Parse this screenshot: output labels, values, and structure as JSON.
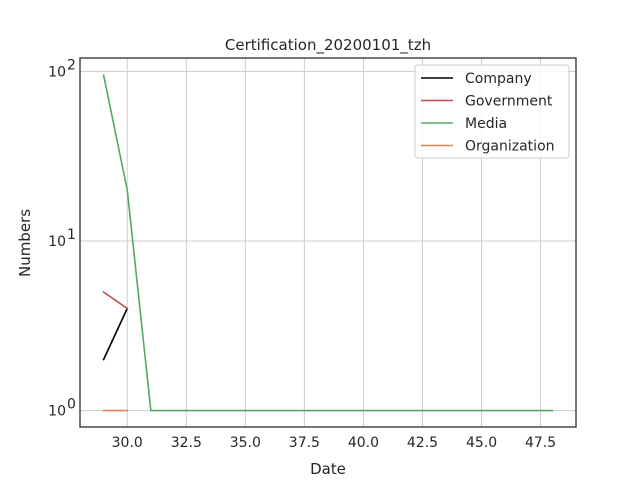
{
  "chart_data": {
    "type": "line",
    "title": "Certification_20200101_tzh",
    "xlabel": "Date",
    "ylabel": "Numbers",
    "yscale": "log",
    "xlim": [
      28,
      49
    ],
    "ylim": [
      0.8,
      120
    ],
    "x_ticks": [
      30.0,
      32.5,
      35.0,
      37.5,
      40.0,
      42.5,
      45.0,
      47.5
    ],
    "x_tick_labels": [
      "30.0",
      "32.5",
      "35.0",
      "37.5",
      "40.0",
      "42.5",
      "45.0",
      "47.5"
    ],
    "y_ticks": [
      1,
      10,
      100
    ],
    "y_tick_labels": [
      {
        "base": "10",
        "exp": "0"
      },
      {
        "base": "10",
        "exp": "1"
      },
      {
        "base": "10",
        "exp": "2"
      }
    ],
    "grid": true,
    "legend_position": "top-right",
    "series": [
      {
        "name": "Company",
        "color": "#000000",
        "x": [
          29,
          30
        ],
        "y": [
          2,
          4
        ]
      },
      {
        "name": "Government",
        "color": "#c44e52",
        "x": [
          29,
          30
        ],
        "y": [
          5,
          4
        ]
      },
      {
        "name": "Media",
        "color": "#55a868",
        "x": [
          29,
          30,
          31,
          32,
          33,
          34,
          35,
          36,
          37,
          38,
          39,
          40,
          41,
          42,
          43,
          44,
          45,
          46,
          47,
          48
        ],
        "y": [
          95,
          20,
          1,
          1,
          1,
          1,
          1,
          1,
          1,
          1,
          1,
          1,
          1,
          1,
          1,
          1,
          1,
          1,
          1,
          1
        ]
      },
      {
        "name": "Organization",
        "color": "#dd8452",
        "x": [
          29,
          30
        ],
        "y": [
          1,
          1
        ]
      }
    ]
  }
}
